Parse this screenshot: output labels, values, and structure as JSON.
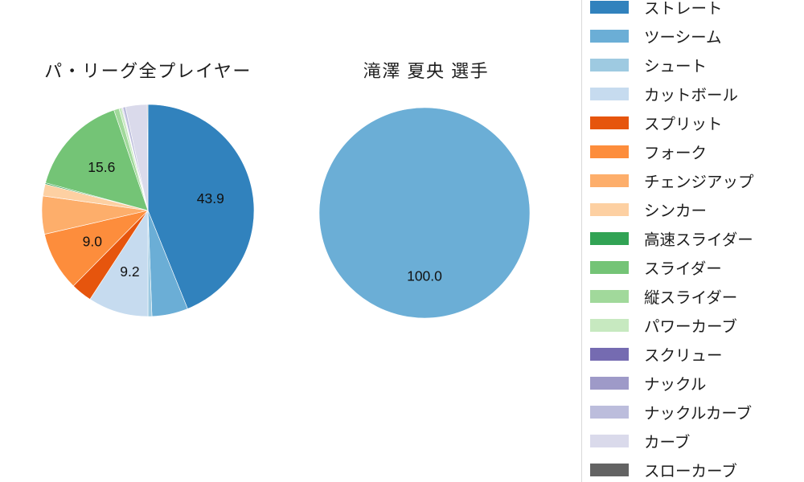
{
  "figure": {
    "kind": "pitch-type-share-comparison",
    "left_title": "パ・リーグ全プレイヤー",
    "right_title": "滝澤 夏央 選手"
  },
  "chart_data": [
    {
      "type": "pie",
      "title": "パ・リーグ全プレイヤー",
      "unit": "percent",
      "direction": "clockwise",
      "start_angle": "12-o-clock",
      "labels_shown_for_pct_gte": 9,
      "categories": [
        "ストレート",
        "ツーシーム",
        "シュート",
        "カットボール",
        "スプリット",
        "フォーク",
        "チェンジアップ",
        "シンカー",
        "高速スライダー",
        "スライダー",
        "縦スライダー",
        "パワーカーブ",
        "スクリュー",
        "ナックル",
        "ナックルカーブ",
        "カーブ",
        "スローカーブ"
      ],
      "values": [
        43.9,
        5.5,
        0.6,
        9.2,
        3.2,
        9.0,
        5.8,
        1.8,
        0.2,
        15.6,
        0.8,
        0.4,
        0.1,
        0.1,
        0.4,
        3.3,
        0.1
      ],
      "labeled_values": {
        "ストレート": "43.9",
        "カットボール": "9.2",
        "フォーク": "9.0",
        "スライダー": "15.6"
      },
      "colors": [
        "#3182bd",
        "#6baed6",
        "#9ecae1",
        "#c6dbef",
        "#e6550d",
        "#fd8d3c",
        "#fdae6b",
        "#fdd0a2",
        "#31a354",
        "#74c476",
        "#a1d99b",
        "#c7e9c0",
        "#756bb1",
        "#9e9ac8",
        "#bcbddc",
        "#dadaeb",
        "#636363"
      ]
    },
    {
      "type": "pie",
      "title": "滝澤 夏央 選手",
      "unit": "percent",
      "direction": "clockwise",
      "start_angle": "12-o-clock",
      "labels_shown_for_pct_gte": 50,
      "categories": [
        "ツーシーム"
      ],
      "values": [
        100.0
      ],
      "labeled_values": {
        "ツーシーム": "100.0"
      },
      "colors": [
        "#6baed6"
      ]
    }
  ],
  "legend": {
    "position": "right",
    "border_color": "#d9d9d9",
    "items": [
      {
        "label": "ストレート",
        "color": "#3182bd"
      },
      {
        "label": "ツーシーム",
        "color": "#6baed6"
      },
      {
        "label": "シュート",
        "color": "#9ecae1"
      },
      {
        "label": "カットボール",
        "color": "#c6dbef"
      },
      {
        "label": "スプリット",
        "color": "#e6550d"
      },
      {
        "label": "フォーク",
        "color": "#fd8d3c"
      },
      {
        "label": "チェンジアップ",
        "color": "#fdae6b"
      },
      {
        "label": "シンカー",
        "color": "#fdd0a2"
      },
      {
        "label": "高速スライダー",
        "color": "#31a354"
      },
      {
        "label": "スライダー",
        "color": "#74c476"
      },
      {
        "label": "縦スライダー",
        "color": "#a1d99b"
      },
      {
        "label": "パワーカーブ",
        "color": "#c7e9c0"
      },
      {
        "label": "スクリュー",
        "color": "#756bb1"
      },
      {
        "label": "ナックル",
        "color": "#9e9ac8"
      },
      {
        "label": "ナックルカーブ",
        "color": "#bcbddc"
      },
      {
        "label": "カーブ",
        "color": "#dadaeb"
      },
      {
        "label": "スローカーブ",
        "color": "#636363"
      }
    ]
  }
}
